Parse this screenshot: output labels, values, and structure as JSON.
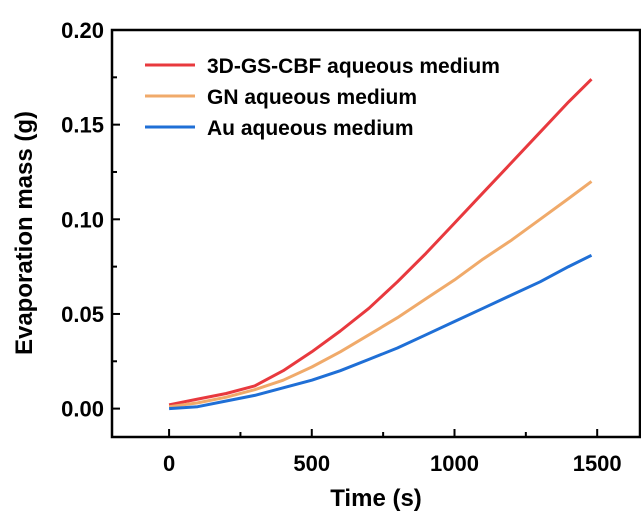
{
  "chart_data": {
    "type": "line",
    "xlabel": "Time (s)",
    "ylabel": "Evaporation mass (g)",
    "xlim": [
      -200,
      1650
    ],
    "ylim": [
      -0.015,
      0.2
    ],
    "xticks": [
      0,
      500,
      1000,
      1500
    ],
    "yticks": [
      0.0,
      0.05,
      0.1,
      0.15,
      0.2
    ],
    "xtick_labels": [
      "0",
      "500",
      "1000",
      "1500"
    ],
    "ytick_labels": [
      "0.00",
      "0.05",
      "0.10",
      "0.15",
      "0.20"
    ],
    "legend_position": "top-left",
    "grid": false,
    "series": [
      {
        "name": "3D-GS-CBF aqueous medium",
        "color": "#e8393e",
        "x": [
          0,
          100,
          200,
          300,
          400,
          500,
          600,
          700,
          800,
          900,
          1000,
          1100,
          1200,
          1300,
          1400,
          1480
        ],
        "y": [
          0.002,
          0.005,
          0.008,
          0.012,
          0.02,
          0.03,
          0.041,
          0.053,
          0.067,
          0.082,
          0.098,
          0.114,
          0.13,
          0.146,
          0.162,
          0.174
        ]
      },
      {
        "name": "GN aqueous medium",
        "color": "#f0aa6a",
        "x": [
          0,
          100,
          200,
          300,
          400,
          500,
          600,
          700,
          800,
          900,
          1000,
          1100,
          1200,
          1300,
          1400,
          1480
        ],
        "y": [
          0.001,
          0.003,
          0.006,
          0.01,
          0.015,
          0.022,
          0.03,
          0.039,
          0.048,
          0.058,
          0.068,
          0.079,
          0.089,
          0.1,
          0.111,
          0.12
        ]
      },
      {
        "name": "Au aqueous medium",
        "color": "#1f6fd6",
        "x": [
          0,
          100,
          200,
          300,
          400,
          500,
          600,
          700,
          800,
          900,
          1000,
          1100,
          1200,
          1300,
          1400,
          1480
        ],
        "y": [
          0.0,
          0.001,
          0.004,
          0.007,
          0.011,
          0.015,
          0.02,
          0.026,
          0.032,
          0.039,
          0.046,
          0.053,
          0.06,
          0.067,
          0.075,
          0.081
        ]
      }
    ]
  }
}
